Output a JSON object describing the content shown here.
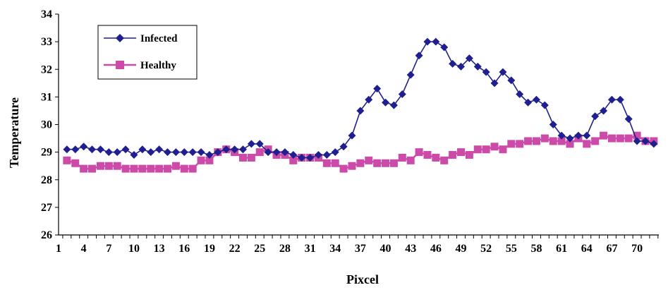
{
  "chart_data": {
    "type": "line",
    "xlabel": "Pixcel",
    "ylabel": "Temperature",
    "ylim": [
      26,
      34
    ],
    "yticks": [
      26,
      27,
      28,
      29,
      30,
      31,
      32,
      33,
      34
    ],
    "xtick_labels": [
      "1",
      "4",
      "7",
      "10",
      "13",
      "16",
      "19",
      "22",
      "25",
      "28",
      "31",
      "34",
      "37",
      "40",
      "43",
      "46",
      "49",
      "52",
      "55",
      "58",
      "61",
      "64",
      "67",
      "70"
    ],
    "legend_position": "top-left",
    "x": [
      2,
      3,
      4,
      5,
      6,
      7,
      8,
      9,
      10,
      11,
      12,
      13,
      14,
      15,
      16,
      17,
      18,
      19,
      20,
      21,
      22,
      23,
      24,
      25,
      26,
      27,
      28,
      29,
      30,
      31,
      32,
      33,
      34,
      35,
      36,
      37,
      38,
      39,
      40,
      41,
      42,
      43,
      44,
      45,
      46,
      47,
      48,
      49,
      50,
      51,
      52,
      53,
      54,
      55,
      56,
      57,
      58,
      59,
      60,
      61,
      62,
      63,
      64,
      65,
      66,
      67,
      68,
      69,
      70,
      71,
      72
    ],
    "series": [
      {
        "name": "Infected",
        "color": "#1f1f8f",
        "marker": "diamond",
        "values": [
          29.1,
          29.1,
          29.2,
          29.1,
          29.1,
          29.0,
          29.0,
          29.1,
          28.9,
          29.1,
          29.0,
          29.1,
          29.0,
          29.0,
          29.0,
          29.0,
          29.0,
          28.9,
          29.0,
          29.1,
          29.1,
          29.1,
          29.3,
          29.3,
          29.0,
          29.0,
          29.0,
          28.9,
          28.8,
          28.8,
          28.9,
          28.9,
          29.0,
          29.2,
          29.6,
          30.5,
          30.9,
          31.3,
          30.8,
          30.7,
          31.1,
          31.8,
          32.5,
          33.0,
          33.0,
          32.8,
          32.2,
          32.1,
          32.4,
          32.1,
          31.9,
          31.5,
          31.9,
          31.6,
          31.1,
          30.8,
          30.9,
          30.7,
          30.0,
          29.6,
          29.5,
          29.6,
          29.6,
          30.3,
          30.5,
          30.9,
          30.9,
          30.2,
          29.4,
          29.4,
          29.3
        ]
      },
      {
        "name": "Healthy",
        "color": "#cc4aa8",
        "marker": "square",
        "values": [
          28.7,
          28.6,
          28.4,
          28.4,
          28.5,
          28.5,
          28.5,
          28.4,
          28.4,
          28.4,
          28.4,
          28.4,
          28.4,
          28.5,
          28.4,
          28.4,
          28.7,
          28.7,
          29.0,
          29.1,
          29.0,
          28.8,
          28.8,
          29.0,
          29.1,
          28.9,
          28.9,
          28.7,
          28.8,
          28.8,
          28.8,
          28.6,
          28.6,
          28.4,
          28.5,
          28.6,
          28.7,
          28.6,
          28.6,
          28.6,
          28.8,
          28.7,
          29.0,
          28.9,
          28.8,
          28.7,
          28.9,
          29.0,
          28.9,
          29.1,
          29.1,
          29.2,
          29.1,
          29.3,
          29.3,
          29.4,
          29.4,
          29.5,
          29.4,
          29.4,
          29.3,
          29.5,
          29.3,
          29.4,
          29.6,
          29.5,
          29.5,
          29.5,
          29.6,
          29.4,
          29.4
        ]
      }
    ]
  }
}
